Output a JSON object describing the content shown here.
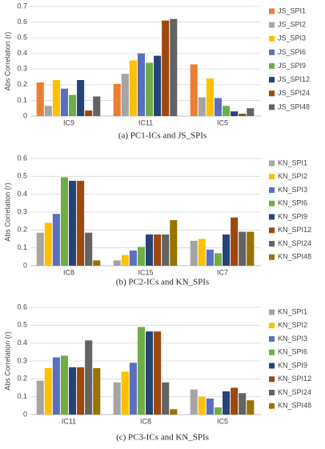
{
  "chart_data": [
    {
      "type": "bar",
      "caption": "(a) PC1-ICs and JS_SPIs",
      "y_label": "Abs Correlation (r)",
      "categories": [
        "IC9",
        "IC11",
        "IC5"
      ],
      "ylim": [
        0,
        0.7
      ],
      "yticks": [
        0,
        0.1,
        0.2,
        0.3,
        0.4,
        0.5,
        0.6,
        0.7
      ],
      "series": [
        {
          "name": "JS_SPI1",
          "color": "#ed7d31",
          "values": [
            0.215,
            0.205,
            0.33
          ]
        },
        {
          "name": "JS_SPI2",
          "color": "#a5a5a5",
          "values": [
            0.065,
            0.27,
            0.12
          ]
        },
        {
          "name": "JS_SPI3",
          "color": "#ffc000",
          "values": [
            0.23,
            0.355,
            0.24
          ]
        },
        {
          "name": "JS_SPI6",
          "color": "#5b6fc0",
          "values": [
            0.175,
            0.4,
            0.115
          ]
        },
        {
          "name": "JS_SPI9",
          "color": "#70ad47",
          "values": [
            0.135,
            0.34,
            0.065
          ]
        },
        {
          "name": "JS_SPI12",
          "color": "#264478",
          "values": [
            0.23,
            0.385,
            0.03
          ]
        },
        {
          "name": "JS_SPI24",
          "color": "#9e480e",
          "values": [
            0.035,
            0.61,
            0.015
          ]
        },
        {
          "name": "JS_SPI48",
          "color": "#636363",
          "values": [
            0.125,
            0.62,
            0.05
          ]
        }
      ]
    },
    {
      "type": "bar",
      "caption": "(b) PC2-ICs and KN_SPIs",
      "y_label": "Abs Correlation (r)",
      "categories": [
        "IC8",
        "IC15",
        "IC7"
      ],
      "ylim": [
        0,
        0.6
      ],
      "yticks": [
        0,
        0.1,
        0.2,
        0.3,
        0.4,
        0.5,
        0.6
      ],
      "series": [
        {
          "name": "KN_SPI1",
          "color": "#a5a5a5",
          "values": [
            0.185,
            0.03,
            0.14
          ]
        },
        {
          "name": "KN_SPI2",
          "color": "#ffc000",
          "values": [
            0.24,
            0.06,
            0.15
          ]
        },
        {
          "name": "KN_SPI3",
          "color": "#5b6fc0",
          "values": [
            0.29,
            0.085,
            0.09
          ]
        },
        {
          "name": "KN_SPI6",
          "color": "#70ad47",
          "values": [
            0.495,
            0.105,
            0.07
          ]
        },
        {
          "name": "KN_SPI9",
          "color": "#264478",
          "values": [
            0.475,
            0.175,
            0.175
          ]
        },
        {
          "name": "KN_SPI12",
          "color": "#9e480e",
          "values": [
            0.475,
            0.175,
            0.27
          ]
        },
        {
          "name": "KN_SPI24",
          "color": "#636363",
          "values": [
            0.185,
            0.175,
            0.19
          ]
        },
        {
          "name": "KN_SPI48",
          "color": "#997300",
          "values": [
            0.03,
            0.255,
            0.19
          ]
        }
      ]
    },
    {
      "type": "bar",
      "caption": "(c) PC3-ICs and KN_SPIs",
      "y_label": "Abs Correlation (r)",
      "categories": [
        "IC11",
        "IC8",
        "IC5"
      ],
      "ylim": [
        0,
        0.6
      ],
      "yticks": [
        0,
        0.1,
        0.2,
        0.3,
        0.4,
        0.5,
        0.6
      ],
      "series": [
        {
          "name": "KN_SPI1",
          "color": "#a5a5a5",
          "values": [
            0.19,
            0.18,
            0.14
          ]
        },
        {
          "name": "KN_SPI2",
          "color": "#ffc000",
          "values": [
            0.26,
            0.24,
            0.1
          ]
        },
        {
          "name": "KN_SPI3",
          "color": "#5b6fc0",
          "values": [
            0.32,
            0.29,
            0.09
          ]
        },
        {
          "name": "KN_SPI6",
          "color": "#70ad47",
          "values": [
            0.33,
            0.49,
            0.04
          ]
        },
        {
          "name": "KN_SPI9",
          "color": "#264478",
          "values": [
            0.265,
            0.465,
            0.13
          ]
        },
        {
          "name": "KN_SPI12",
          "color": "#9e480e",
          "values": [
            0.265,
            0.465,
            0.15
          ]
        },
        {
          "name": "KN_SPI24",
          "color": "#636363",
          "values": [
            0.415,
            0.18,
            0.12
          ]
        },
        {
          "name": "KN_SPI48",
          "color": "#997300",
          "values": [
            0.26,
            0.03,
            0.08
          ]
        }
      ]
    }
  ]
}
